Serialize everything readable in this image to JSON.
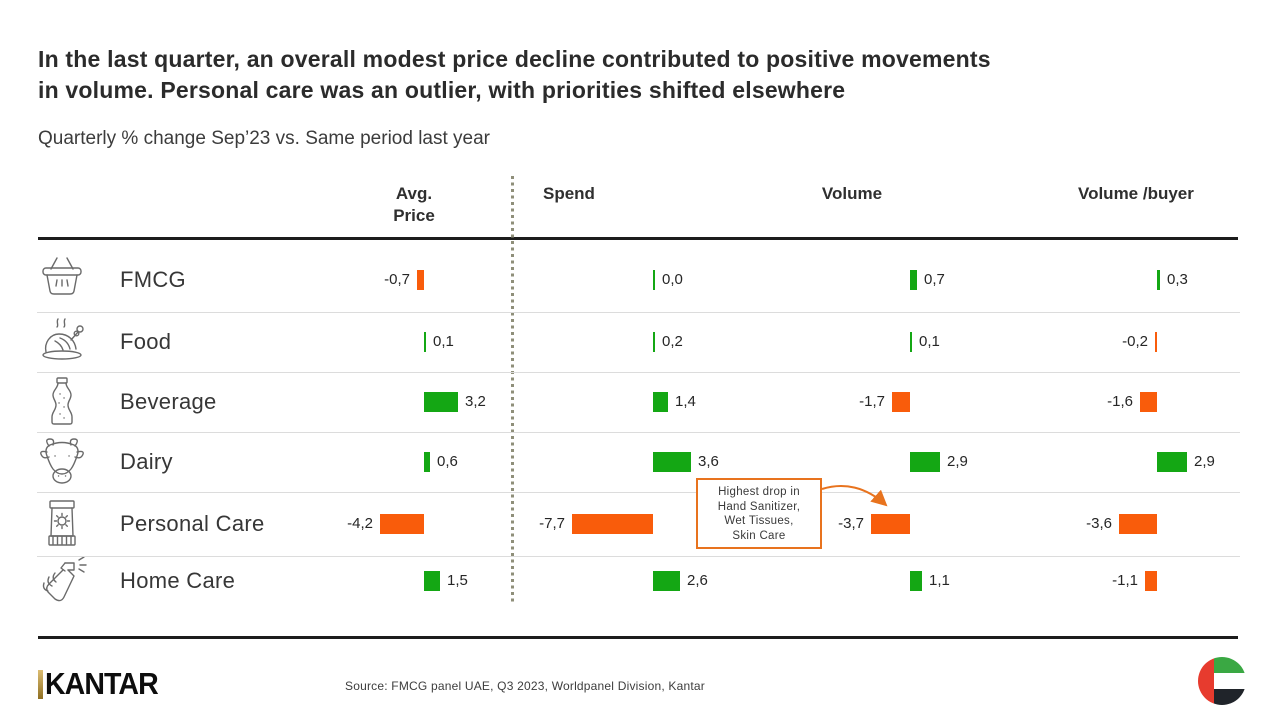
{
  "title": {
    "line1": "In the last quarter, an overall modest price decline contributed to positive movements",
    "line2": "in volume. Personal care was an outlier, with priorities shifted elsewhere"
  },
  "subtitle": "Quarterly % change Sep’23 vs. Same period last year",
  "table": {
    "icons": [
      "basket-icon",
      "turkey-icon",
      "bottle-icon",
      "cow-icon",
      "sunscreen-icon",
      "spray-icon"
    ]
  },
  "chart_data": {
    "type": "bar",
    "title": "Quarterly % change Sep’23 vs. Same period last year",
    "unit": "%",
    "categories": [
      "FMCG",
      "Food",
      "Beverage",
      "Dairy",
      "Personal Care",
      "Home Care"
    ],
    "series": [
      {
        "name": "Avg. Price",
        "values": [
          -0.7,
          0.1,
          3.2,
          0.6,
          -4.2,
          1.5
        ],
        "labels": [
          "-0,7",
          "0,1",
          "3,2",
          "0,6",
          "-4,2",
          "1,5"
        ]
      },
      {
        "name": "Spend",
        "values": [
          0.0,
          0.2,
          1.4,
          3.6,
          -7.7,
          2.6
        ],
        "labels": [
          "0,0",
          "0,2",
          "1,4",
          "3,6",
          "-7,7",
          "2,6"
        ]
      },
      {
        "name": "Volume",
        "values": [
          0.7,
          0.1,
          -1.7,
          2.9,
          -3.7,
          1.1
        ],
        "labels": [
          "0,7",
          "0,1",
          "-1,7",
          "2,9",
          "-3,7",
          "1,1"
        ]
      },
      {
        "name": "Volume /buyer",
        "values": [
          0.3,
          -0.2,
          -1.6,
          2.9,
          -3.6,
          -1.1
        ],
        "labels": [
          "0,3",
          "-0,2",
          "-1,6",
          "2,9",
          "-3,6",
          "-1,1"
        ]
      }
    ],
    "ylim": [
      -8,
      4
    ],
    "legend": "none",
    "grid": "row-dividers",
    "positive_color": "#14A714",
    "negative_color": "#F95C0B"
  },
  "annotation": {
    "lines": [
      "Highest drop in",
      "Hand Sanitizer,",
      "Wet Tissues,",
      "Skin Care"
    ],
    "target": "Personal Care Volume",
    "border_color": "#E8731E"
  },
  "footer": {
    "logo_text": "KANTAR",
    "source": "Source: FMCG panel UAE, Q3 2023, Worldpanel Division,  Kantar",
    "flag": "uae-flag"
  }
}
